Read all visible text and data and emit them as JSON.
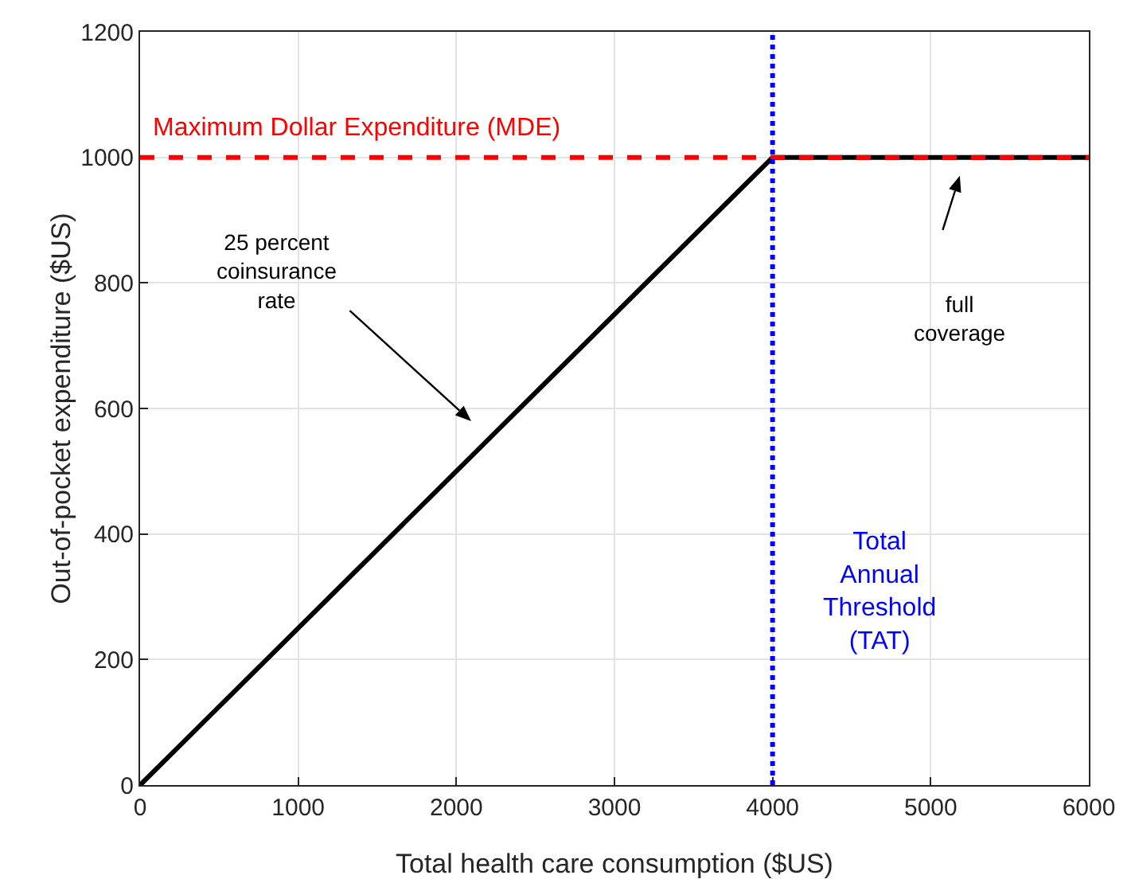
{
  "chart_data": {
    "type": "line",
    "xlabel": "Total health care consumption ($US)",
    "ylabel": "Out-of-pocket expenditure ($US)",
    "x": [
      0,
      4000,
      6000
    ],
    "series": [
      {
        "color": "#000000",
        "values": [
          0,
          1000,
          1000
        ]
      }
    ],
    "xlim": [
      0,
      6000
    ],
    "xticks": [
      0,
      1000,
      2000,
      3000,
      4000,
      5000,
      6000
    ],
    "ylim": [
      0,
      1200
    ],
    "yticks": [
      0,
      200,
      400,
      600,
      800,
      1000,
      1200
    ],
    "grid": true,
    "legend": false,
    "marker": "none",
    "line_style": "solid",
    "ref_lines": [
      {
        "axis": "y",
        "value": 1000,
        "label": "Maximum Dollar Expenditure (MDE)",
        "color": "#ff0000",
        "line_style": "dashed"
      },
      {
        "axis": "x",
        "value": 4000,
        "label": "Total Annual Threshold (TAT)",
        "color": "#0000ff",
        "line_style": "dotted"
      }
    ],
    "annotations": [
      "25 percent coinsurance rate",
      "full coverage"
    ]
  }
}
